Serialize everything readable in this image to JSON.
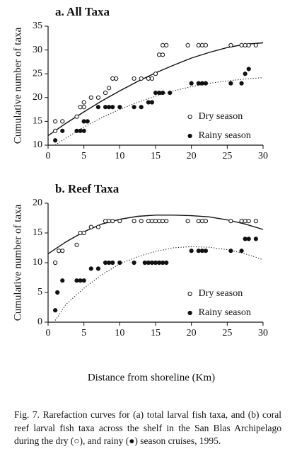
{
  "chart_data": [
    {
      "type": "scatter",
      "title": "a.  All Taxa",
      "ylabel": "Cumulative number of taxa",
      "xlim": [
        0,
        30
      ],
      "xticks": [
        0,
        5,
        10,
        15,
        20,
        25,
        30
      ],
      "ylim": [
        10,
        35
      ],
      "yticks": [
        10,
        15,
        20,
        25,
        30,
        35
      ],
      "legend": "lower right",
      "series": [
        {
          "name": "Dry season",
          "marker": "open",
          "color": "#111111",
          "x": [
            1,
            1,
            2,
            4,
            4.5,
            5,
            5,
            6,
            7,
            8,
            8.5,
            9,
            9.5,
            12,
            13,
            14,
            14.5,
            15,
            15.5,
            16,
            16,
            16.5,
            19.5,
            21,
            21.5,
            22,
            25.5,
            27,
            27.5,
            28,
            29
          ],
          "values": [
            13,
            15,
            15,
            16,
            18,
            18,
            19,
            20,
            20,
            21,
            22,
            24,
            24,
            24,
            24,
            24,
            24,
            25,
            29,
            29,
            31,
            31,
            31,
            31,
            31,
            31,
            31,
            31,
            31,
            31,
            31
          ]
        },
        {
          "name": "Rainy season",
          "marker": "filled",
          "color": "#111111",
          "x": [
            1,
            2,
            4,
            4.5,
            5,
            5,
            5.5,
            7,
            8,
            8.5,
            9,
            10,
            12,
            13,
            14,
            14.5,
            15,
            15.5,
            16,
            17,
            20,
            21,
            21.5,
            22,
            25.5,
            27,
            27.5,
            28
          ],
          "values": [
            11,
            13,
            13,
            13,
            13,
            15,
            15,
            18,
            18,
            18,
            18,
            18,
            18,
            18,
            19,
            19,
            21,
            21,
            21,
            21,
            23,
            23,
            23,
            23,
            23,
            23,
            25,
            26
          ]
        }
      ],
      "trend_lines": [
        {
          "style": "solid",
          "x": [
            0,
            2.5,
            5,
            7.5,
            10,
            12.5,
            15,
            17.5,
            20,
            22.5,
            25,
            27.5,
            30
          ],
          "values": [
            12,
            14.6,
            17,
            19.3,
            21.4,
            23.4,
            25.2,
            26.8,
            28.3,
            29.5,
            30.5,
            31.2,
            31.5
          ]
        },
        {
          "style": "dotted",
          "x": [
            1,
            2.5,
            5,
            7.5,
            10,
            12.5,
            15,
            17.5,
            20,
            22.5,
            25,
            27.5,
            30
          ],
          "values": [
            10,
            11.5,
            13.8,
            15.8,
            17.5,
            19,
            20.3,
            21.4,
            22.3,
            23,
            23.5,
            23.9,
            24.2
          ]
        }
      ]
    },
    {
      "type": "scatter",
      "title": "b.  Reef Taxa",
      "ylabel": "Cumulative number of taxa",
      "xlabel": "Distance from shoreline (Km)",
      "xlim": [
        0,
        30
      ],
      "xticks": [
        0,
        5,
        10,
        15,
        20,
        25,
        30
      ],
      "ylim": [
        0,
        20
      ],
      "yticks": [
        0,
        5,
        10,
        15,
        20
      ],
      "legend": "lower right",
      "series": [
        {
          "name": "Dry season",
          "marker": "open",
          "color": "#111111",
          "x": [
            1,
            1.5,
            2,
            4,
            4.5,
            5,
            6,
            7,
            8,
            8.5,
            9,
            10,
            12,
            13,
            14,
            14.5,
            15,
            15.5,
            16,
            16.5,
            19.5,
            21,
            21.5,
            22,
            25.5,
            27,
            27.5,
            28,
            29
          ],
          "values": [
            10,
            12,
            12,
            13,
            15,
            15,
            16,
            16,
            17,
            17,
            17,
            17,
            17,
            17,
            17,
            17,
            17,
            17,
            17,
            17,
            17,
            17,
            17,
            17,
            17,
            17,
            17,
            17,
            17
          ]
        },
        {
          "name": "Rainy season",
          "marker": "filled",
          "color": "#111111",
          "x": [
            1,
            1.3,
            2,
            4,
            4.5,
            5,
            6,
            7,
            8,
            8.5,
            9,
            10,
            12,
            13.5,
            14,
            14.5,
            15,
            15.5,
            16,
            16.5,
            20,
            21,
            21.5,
            22,
            25.5,
            27,
            27.5,
            28,
            29
          ],
          "values": [
            2,
            5,
            7,
            7,
            7,
            7,
            9,
            9,
            10,
            10,
            10,
            10,
            10,
            10,
            10,
            10,
            10,
            10,
            10,
            10,
            12,
            12,
            12,
            12,
            12,
            12,
            14,
            14,
            14
          ]
        }
      ],
      "trend_lines": [
        {
          "style": "solid",
          "x": [
            0,
            2.5,
            5,
            7.5,
            10,
            12.5,
            15,
            17.5,
            20,
            22.5,
            25,
            27.5,
            30
          ],
          "values": [
            11.5,
            13.5,
            15.2,
            16.5,
            17.3,
            17.8,
            18,
            18,
            17.9,
            17.7,
            17.2,
            16.5,
            15.6
          ]
        },
        {
          "style": "dotted",
          "x": [
            1,
            2.5,
            5,
            7.5,
            10,
            12.5,
            15,
            17.5,
            20,
            22.5,
            25,
            27.5,
            30
          ],
          "values": [
            0.3,
            3,
            5.7,
            8,
            9.8,
            11,
            11.9,
            12.5,
            12.7,
            12.6,
            12.2,
            11.5,
            10.5
          ]
        }
      ]
    }
  ],
  "caption": "Fig. 7. Rarefaction curves for (a) total larval fish taxa, and (b) coral reef larval fish taxa across the shelf in the San Blas Archipelago during the dry (○), and rainy (●) season cruises, 1995."
}
